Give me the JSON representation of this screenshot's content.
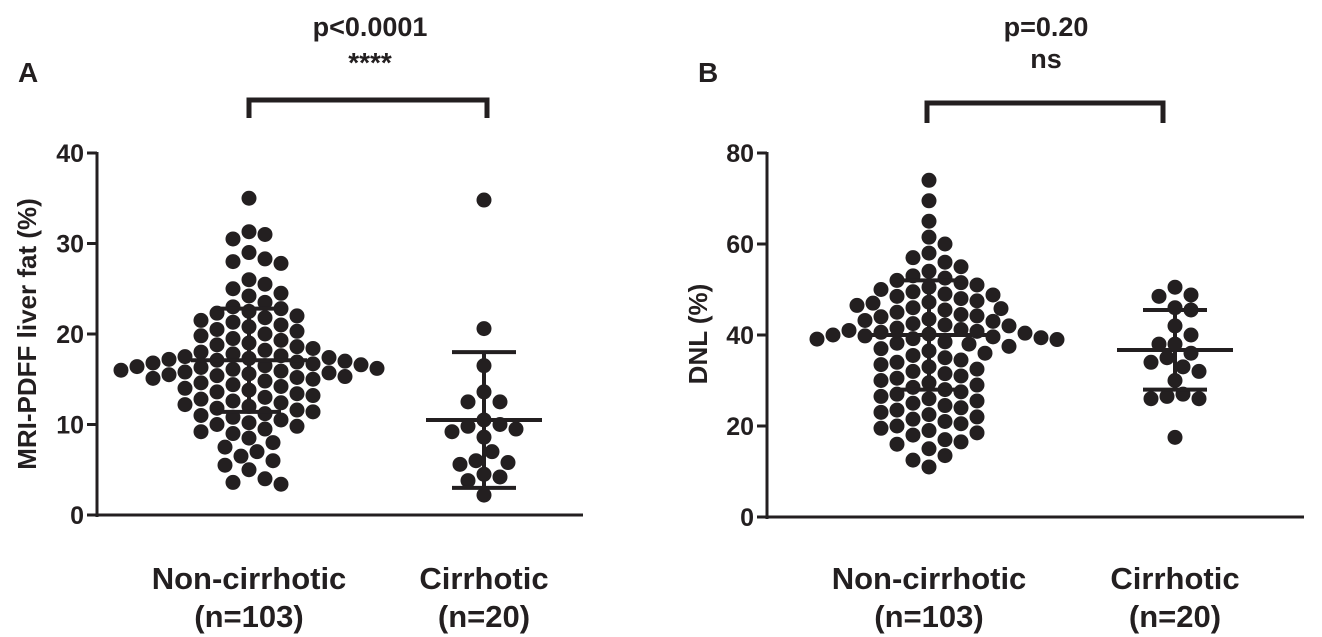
{
  "chart_data": [
    {
      "panel_label": "A",
      "type": "scatter",
      "ylabel": "MRI-PDFF liver fat (%)",
      "ylim": [
        0,
        40
      ],
      "yticks": [
        0,
        10,
        20,
        30,
        40
      ],
      "categories": [
        {
          "name": "Non-cirrhotic",
          "sub": "(n=103)"
        },
        {
          "name": "Cirrhotic",
          "sub": "(n=20)"
        }
      ],
      "series": [
        {
          "name": "Non-cirrhotic",
          "values": [
            35.0,
            31.3,
            31.0,
            30.5,
            29.0,
            28.3,
            28.0,
            27.8,
            26.0,
            25.5,
            25.0,
            24.5,
            24.2,
            23.5,
            23.0,
            22.8,
            22.5,
            22.3,
            22.0,
            21.8,
            21.5,
            21.3,
            21.0,
            20.8,
            20.5,
            20.3,
            20.0,
            19.8,
            19.5,
            19.3,
            19.0,
            18.8,
            18.6,
            18.4,
            18.2,
            18.0,
            17.8,
            17.6,
            17.5,
            17.4,
            17.3,
            17.2,
            17.1,
            17.0,
            16.9,
            16.8,
            16.7,
            16.6,
            16.5,
            16.4,
            16.3,
            16.2,
            16.1,
            16.0,
            15.9,
            15.8,
            15.7,
            15.6,
            15.5,
            15.4,
            15.3,
            15.2,
            15.1,
            15.0,
            14.8,
            14.6,
            14.4,
            14.2,
            14.0,
            13.8,
            13.6,
            13.4,
            13.2,
            13.0,
            12.8,
            12.6,
            12.4,
            12.2,
            12.0,
            11.8,
            11.6,
            11.4,
            11.2,
            11.0,
            10.8,
            10.5,
            10.2,
            10.0,
            9.8,
            9.5,
            9.2,
            9.0,
            8.5,
            8.0,
            7.5,
            7.0,
            6.5,
            6.0,
            5.5,
            5.0,
            4.0,
            3.6,
            3.4
          ],
          "mean": 17.1,
          "sd_upper": 22.8,
          "sd_lower": 11.4
        },
        {
          "name": "Cirrhotic",
          "values": [
            34.8,
            20.6,
            16.5,
            13.6,
            12.5,
            12.5,
            10.5,
            10.0,
            9.8,
            9.5,
            9.2,
            8.6,
            7.0,
            6.0,
            5.8,
            5.6,
            4.5,
            4.2,
            3.8,
            2.2
          ],
          "mean": 10.5,
          "sd_upper": 18.0,
          "sd_lower": 3.0
        }
      ],
      "annotation": {
        "p_value": "p<0.0001",
        "significance": "****"
      }
    },
    {
      "panel_label": "B",
      "type": "scatter",
      "ylabel": "DNL (%)",
      "ylim": [
        0,
        80
      ],
      "yticks": [
        0,
        20,
        40,
        60,
        80
      ],
      "categories": [
        {
          "name": "Non-cirrhotic",
          "sub": "(n=103)"
        },
        {
          "name": "Cirrhotic",
          "sub": "(n=20)"
        }
      ],
      "series": [
        {
          "name": "Non-cirrhotic",
          "values": [
            74.0,
            69.5,
            65.0,
            61.5,
            60.0,
            58.0,
            57.0,
            56.0,
            55.0,
            54.0,
            53.0,
            52.5,
            52.0,
            51.5,
            51.0,
            50.5,
            50.0,
            49.5,
            49.0,
            48.5,
            48.0,
            47.5,
            47.0,
            46.5,
            46.0,
            45.5,
            45.0,
            44.5,
            44.0,
            43.5,
            43.0,
            42.5,
            42.0,
            41.5,
            41.0,
            40.8,
            40.6,
            40.4,
            40.2,
            40.0,
            39.8,
            39.6,
            39.4,
            39.2,
            39.0,
            38.5,
            38.0,
            37.5,
            37.0,
            36.5,
            36.0,
            35.5,
            35.0,
            34.5,
            34.0,
            33.5,
            33.0,
            32.5,
            32.0,
            31.5,
            31.0,
            30.5,
            30.0,
            29.5,
            29.0,
            28.5,
            28.0,
            27.5,
            27.0,
            26.5,
            26.0,
            25.5,
            25.0,
            24.5,
            24.0,
            23.5,
            23.0,
            22.5,
            22.0,
            21.5,
            21.0,
            20.5,
            20.0,
            19.5,
            19.0,
            18.5,
            18.0,
            17.0,
            16.5,
            16.0,
            15.0,
            13.5,
            12.5,
            11.0,
            48.8,
            47.2,
            45.8,
            44.2,
            43.2,
            42.2,
            41.2,
            39.1,
            38.2
          ],
          "mean": 40.0,
          "sd_upper": 52.0,
          "sd_lower": 28.0
        },
        {
          "name": "Cirrhotic",
          "values": [
            50.5,
            48.8,
            48.5,
            46.0,
            45.5,
            42.0,
            40.0,
            38.0,
            38.0,
            36.0,
            35.0,
            34.0,
            33.0,
            32.0,
            30.0,
            27.0,
            26.5,
            26.0,
            26.0,
            17.5
          ],
          "mean": 36.7,
          "sd_upper": 45.5,
          "sd_lower": 28.0
        }
      ],
      "annotation": {
        "p_value": "p=0.20",
        "significance": "ns"
      }
    }
  ]
}
